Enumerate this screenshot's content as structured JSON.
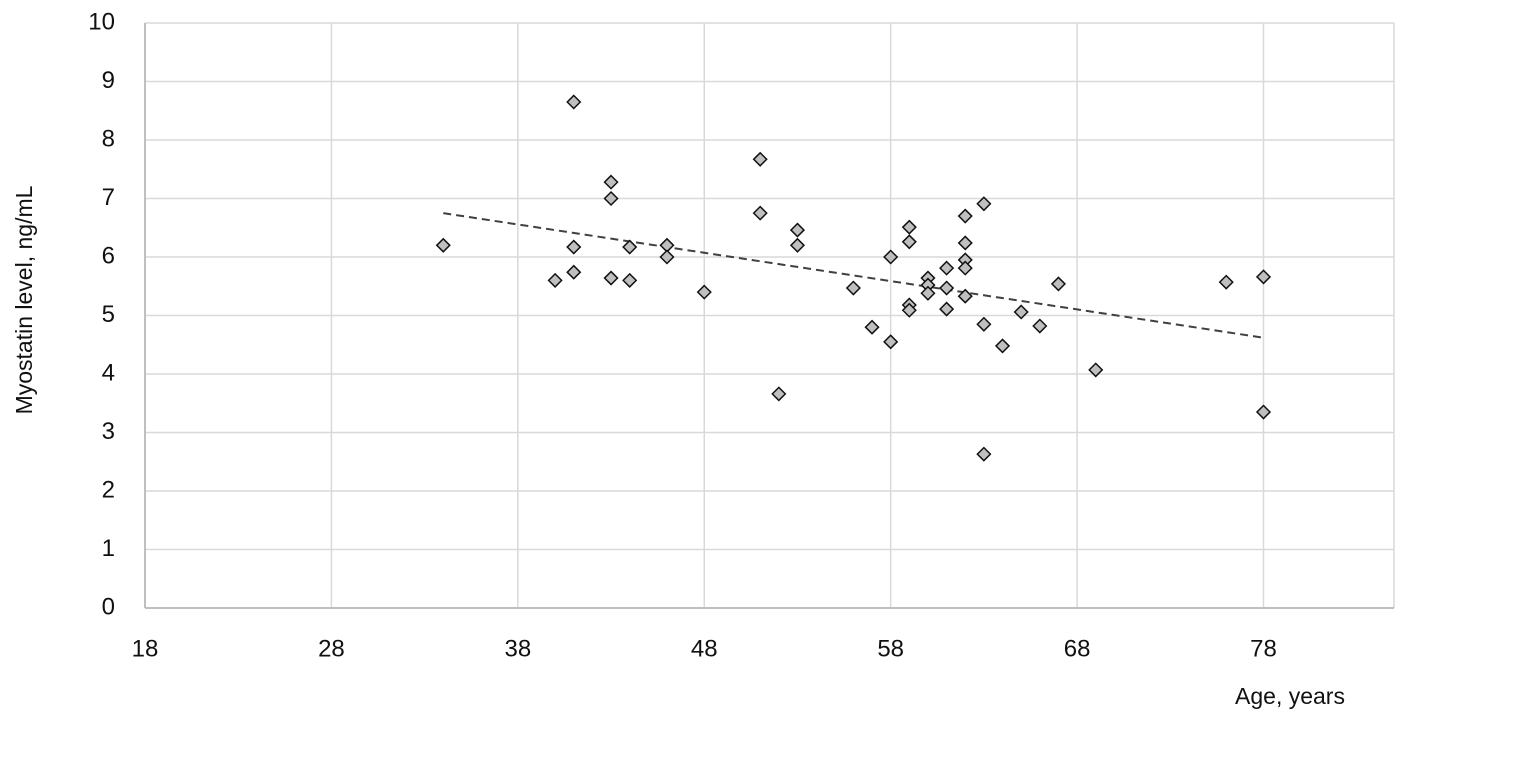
{
  "chart_data": {
    "type": "scatter",
    "x_label": "Age, years",
    "y_label": "Myostatin level, ng/mL",
    "x": [
      34,
      40,
      41,
      41,
      41,
      43,
      43,
      43,
      44,
      44,
      46,
      46,
      48,
      51,
      51,
      52,
      53,
      53,
      56,
      57,
      58,
      58,
      59,
      59,
      59,
      59,
      60,
      60,
      60,
      61,
      61,
      61,
      62,
      62,
      62,
      62,
      62,
      63,
      63,
      63,
      64,
      65,
      66,
      67,
      69,
      76,
      78,
      78
    ],
    "values": [
      6.2,
      5.6,
      8.65,
      6.17,
      5.74,
      7.28,
      7.0,
      5.64,
      6.17,
      5.6,
      6.2,
      6.0,
      5.4,
      7.67,
      6.75,
      3.66,
      6.46,
      6.2,
      5.47,
      4.8,
      6.0,
      4.55,
      6.51,
      6.26,
      5.18,
      5.09,
      5.64,
      5.52,
      5.38,
      5.81,
      5.47,
      5.11,
      6.7,
      6.24,
      5.95,
      5.81,
      5.33,
      6.91,
      4.85,
      2.63,
      4.48,
      5.06,
      4.82,
      5.54,
      4.07,
      5.57,
      5.66,
      3.35
    ],
    "color": "#bfbfbf",
    "trendline": {
      "x": [
        34,
        78
      ],
      "values": [
        6.75,
        4.62
      ],
      "color": "#404040"
    },
    "xlim": [
      18,
      85
    ],
    "xticks": [
      18,
      28,
      38,
      48,
      58,
      68,
      78
    ],
    "ylim": [
      0,
      10
    ],
    "yticks": [
      0,
      1,
      2,
      3,
      4,
      5,
      6,
      7,
      8,
      9,
      10
    ],
    "grid": true
  }
}
